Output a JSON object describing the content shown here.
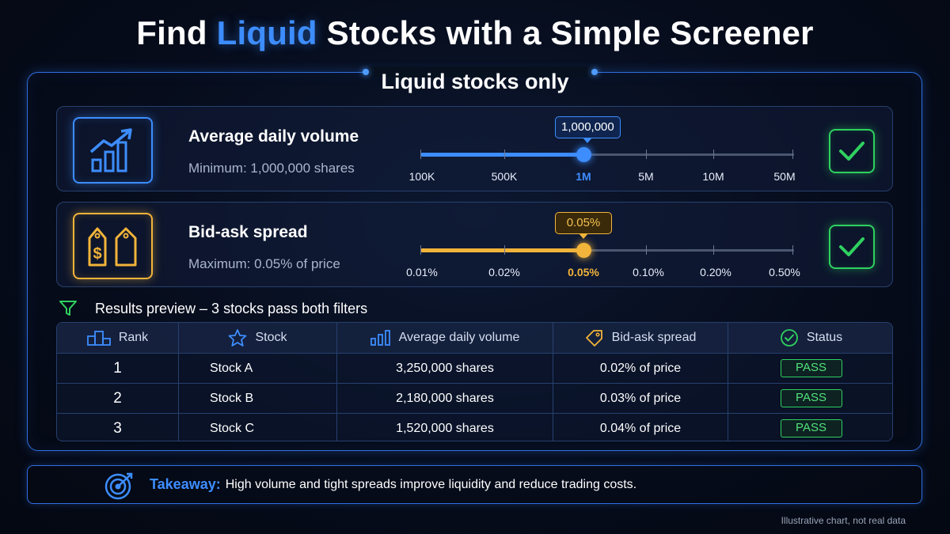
{
  "title": {
    "pre": "Find ",
    "highlight": "Liquid",
    "post": " Stocks with a Simple Screener"
  },
  "panel_title": "Liquid stocks only",
  "filters": [
    {
      "name": "Average daily volume",
      "description": "Minimum: 1,000,000 shares",
      "value_label": "1,000,000",
      "ticks": [
        "100K",
        "500K",
        "1M",
        "5M",
        "10M",
        "50M"
      ],
      "selected_index": 2,
      "color": "#3d8dff",
      "icon": "bar-chart-trend-icon",
      "status_icon": "check-icon"
    },
    {
      "name": "Bid-ask spread",
      "description": "Maximum: 0.05% of price",
      "value_label": "0.05%",
      "ticks": [
        "0.01%",
        "0.02%",
        "0.05%",
        "0.10%",
        "0.20%",
        "0.50%"
      ],
      "selected_index": 2,
      "color": "#f2b43a",
      "icon": "price-tags-icon",
      "status_icon": "check-icon"
    }
  ],
  "results": {
    "heading": "Results preview – 3 stocks pass both filters",
    "columns": [
      "Rank",
      "Stock",
      "Average daily volume",
      "Bid-ask spread",
      "Status"
    ],
    "rows": [
      {
        "rank": "1",
        "stock": "Stock A",
        "volume": "3,250,000 shares",
        "spread": "0.02% of price",
        "status": "PASS"
      },
      {
        "rank": "2",
        "stock": "Stock B",
        "volume": "2,180,000 shares",
        "spread": "0.03% of price",
        "status": "PASS"
      },
      {
        "rank": "3",
        "stock": "Stock C",
        "volume": "1,520,000 shares",
        "spread": "0.04% of price",
        "status": "PASS"
      }
    ]
  },
  "takeaway": {
    "label": "Takeaway:",
    "message": "High volume and tight spreads improve liquidity and reduce trading costs."
  },
  "footnote": "Illustrative chart, not real data",
  "colors": {
    "accent": "#3d8dff",
    "gold": "#f2b43a",
    "pass": "#2fd15f"
  }
}
